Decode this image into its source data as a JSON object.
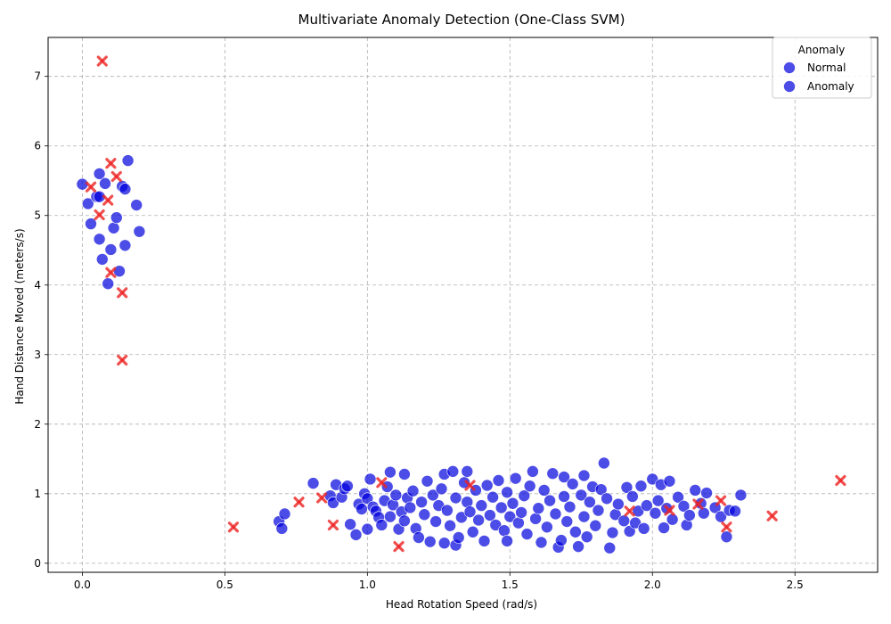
{
  "chart_data": {
    "type": "scatter",
    "title": "Multivariate Anomaly Detection (One-Class SVM)",
    "xlabel": "Head Rotation Speed (rad/s)",
    "ylabel": "Hand Distance Moved (meters/s)",
    "xlim": [
      -0.12,
      2.79
    ],
    "ylim": [
      -0.13,
      7.56
    ],
    "xticks": [
      0.0,
      0.5,
      1.0,
      1.5,
      2.0,
      2.5
    ],
    "xtick_labels": [
      "0.0",
      "0.5",
      "1.0",
      "1.5",
      "2.0",
      "2.5"
    ],
    "yticks": [
      0,
      1,
      2,
      3,
      4,
      5,
      6,
      7
    ],
    "ytick_labels": [
      "0",
      "1",
      "2",
      "3",
      "4",
      "5",
      "6",
      "7"
    ],
    "grid": true,
    "legend": {
      "title": "Anomaly",
      "position": "top-right",
      "entries": [
        "Normal",
        "Anomaly"
      ]
    },
    "series": [
      {
        "name": "Normal",
        "marker": "circle",
        "color": "#0000dd",
        "points": [
          [
            0.0,
            5.45
          ],
          [
            0.02,
            5.17
          ],
          [
            0.03,
            4.88
          ],
          [
            0.05,
            5.27
          ],
          [
            0.06,
            5.6
          ],
          [
            0.06,
            4.66
          ],
          [
            0.07,
            4.37
          ],
          [
            0.08,
            5.46
          ],
          [
            0.09,
            4.02
          ],
          [
            0.1,
            4.51
          ],
          [
            0.11,
            4.82
          ],
          [
            0.12,
            4.97
          ],
          [
            0.13,
            4.2
          ],
          [
            0.14,
            5.42
          ],
          [
            0.15,
            4.57
          ],
          [
            0.15,
            5.38
          ],
          [
            0.16,
            5.79
          ],
          [
            0.19,
            5.15
          ],
          [
            0.2,
            4.77
          ],
          [
            0.06,
            5.27
          ],
          [
            0.69,
            0.6
          ],
          [
            0.7,
            0.5
          ],
          [
            0.71,
            0.71
          ],
          [
            0.81,
            1.15
          ],
          [
            0.87,
            0.97
          ],
          [
            0.88,
            0.87
          ],
          [
            0.89,
            1.13
          ],
          [
            0.91,
            0.95
          ],
          [
            0.92,
            1.07
          ],
          [
            0.93,
            1.11
          ],
          [
            0.94,
            0.56
          ],
          [
            0.96,
            0.41
          ],
          [
            0.97,
            0.85
          ],
          [
            0.98,
            0.78
          ],
          [
            0.99,
            1.0
          ],
          [
            1.0,
            0.49
          ],
          [
            1.0,
            0.93
          ],
          [
            1.01,
            1.21
          ],
          [
            1.02,
            0.81
          ],
          [
            1.03,
            0.75
          ],
          [
            1.04,
            0.66
          ],
          [
            1.05,
            0.55
          ],
          [
            1.06,
            0.9
          ],
          [
            1.07,
            1.1
          ],
          [
            1.08,
            1.31
          ],
          [
            1.08,
            0.67
          ],
          [
            1.09,
            0.84
          ],
          [
            1.1,
            0.98
          ],
          [
            1.11,
            0.49
          ],
          [
            1.12,
            0.74
          ],
          [
            1.13,
            1.28
          ],
          [
            1.13,
            0.61
          ],
          [
            1.14,
            0.94
          ],
          [
            1.15,
            0.8
          ],
          [
            1.16,
            1.04
          ],
          [
            1.17,
            0.5
          ],
          [
            1.18,
            0.37
          ],
          [
            1.19,
            0.88
          ],
          [
            1.2,
            0.7
          ],
          [
            1.21,
            1.18
          ],
          [
            1.22,
            0.31
          ],
          [
            1.23,
            0.98
          ],
          [
            1.24,
            0.6
          ],
          [
            1.25,
            0.83
          ],
          [
            1.26,
            1.07
          ],
          [
            1.27,
            0.29
          ],
          [
            1.27,
            1.28
          ],
          [
            1.28,
            0.76
          ],
          [
            1.29,
            0.54
          ],
          [
            1.3,
            1.32
          ],
          [
            1.31,
            0.94
          ],
          [
            1.31,
            0.26
          ],
          [
            1.32,
            0.37
          ],
          [
            1.33,
            0.66
          ],
          [
            1.34,
            1.16
          ],
          [
            1.35,
            0.88
          ],
          [
            1.35,
            1.32
          ],
          [
            1.36,
            0.74
          ],
          [
            1.37,
            0.45
          ],
          [
            1.38,
            1.05
          ],
          [
            1.39,
            0.62
          ],
          [
            1.4,
            0.83
          ],
          [
            1.41,
            0.32
          ],
          [
            1.42,
            1.12
          ],
          [
            1.43,
            0.69
          ],
          [
            1.44,
            0.95
          ],
          [
            1.45,
            0.55
          ],
          [
            1.46,
            1.19
          ],
          [
            1.47,
            0.8
          ],
          [
            1.48,
            0.47
          ],
          [
            1.49,
            1.02
          ],
          [
            1.49,
            0.32
          ],
          [
            1.5,
            0.67
          ],
          [
            1.51,
            0.86
          ],
          [
            1.52,
            1.22
          ],
          [
            1.53,
            0.58
          ],
          [
            1.54,
            0.73
          ],
          [
            1.55,
            0.97
          ],
          [
            1.56,
            0.42
          ],
          [
            1.57,
            1.11
          ],
          [
            1.58,
            1.32
          ],
          [
            1.59,
            0.64
          ],
          [
            1.6,
            0.79
          ],
          [
            1.61,
            0.3
          ],
          [
            1.62,
            1.05
          ],
          [
            1.63,
            0.52
          ],
          [
            1.64,
            0.9
          ],
          [
            1.65,
            1.29
          ],
          [
            1.66,
            0.71
          ],
          [
            1.67,
            0.23
          ],
          [
            1.68,
            0.33
          ],
          [
            1.69,
            1.24
          ],
          [
            1.69,
            0.96
          ],
          [
            1.7,
            0.6
          ],
          [
            1.71,
            0.81
          ],
          [
            1.72,
            1.14
          ],
          [
            1.73,
            0.45
          ],
          [
            1.74,
            0.24
          ],
          [
            1.75,
            0.98
          ],
          [
            1.76,
            0.67
          ],
          [
            1.76,
            1.26
          ],
          [
            1.77,
            0.38
          ],
          [
            1.78,
            0.88
          ],
          [
            1.79,
            1.1
          ],
          [
            1.8,
            0.54
          ],
          [
            1.81,
            0.76
          ],
          [
            1.82,
            1.06
          ],
          [
            1.83,
            1.44
          ],
          [
            1.84,
            0.93
          ],
          [
            1.85,
            0.22
          ],
          [
            1.86,
            0.44
          ],
          [
            1.87,
            0.7
          ],
          [
            1.88,
            0.85
          ],
          [
            1.9,
            0.61
          ],
          [
            1.91,
            1.09
          ],
          [
            1.92,
            0.46
          ],
          [
            1.93,
            0.96
          ],
          [
            1.94,
            0.58
          ],
          [
            1.95,
            0.75
          ],
          [
            1.96,
            1.11
          ],
          [
            1.97,
            0.5
          ],
          [
            1.98,
            0.83
          ],
          [
            2.0,
            1.21
          ],
          [
            2.01,
            0.72
          ],
          [
            2.02,
            0.9
          ],
          [
            2.03,
            1.13
          ],
          [
            2.04,
            0.51
          ],
          [
            2.05,
            0.79
          ],
          [
            2.06,
            1.18
          ],
          [
            2.07,
            0.63
          ],
          [
            2.09,
            0.95
          ],
          [
            2.11,
            0.82
          ],
          [
            2.12,
            0.55
          ],
          [
            2.13,
            0.69
          ],
          [
            2.15,
            1.05
          ],
          [
            2.17,
            0.86
          ],
          [
            2.18,
            0.72
          ],
          [
            2.19,
            1.01
          ],
          [
            2.22,
            0.8
          ],
          [
            2.24,
            0.67
          ],
          [
            2.26,
            0.38
          ],
          [
            2.27,
            0.76
          ],
          [
            2.29,
            0.75
          ],
          [
            2.31,
            0.98
          ]
        ]
      },
      {
        "name": "Anomaly",
        "marker": "x",
        "color": "#ee2222",
        "points": [
          [
            0.07,
            7.22
          ],
          [
            0.1,
            5.75
          ],
          [
            0.12,
            5.56
          ],
          [
            0.03,
            5.41
          ],
          [
            0.09,
            5.22
          ],
          [
            0.06,
            5.01
          ],
          [
            0.1,
            4.18
          ],
          [
            0.14,
            3.89
          ],
          [
            0.14,
            2.92
          ],
          [
            0.53,
            0.52
          ],
          [
            0.76,
            0.88
          ],
          [
            0.84,
            0.94
          ],
          [
            0.88,
            0.55
          ],
          [
            1.05,
            1.16
          ],
          [
            1.11,
            0.24
          ],
          [
            1.36,
            1.12
          ],
          [
            1.92,
            0.75
          ],
          [
            2.06,
            0.76
          ],
          [
            2.16,
            0.85
          ],
          [
            2.24,
            0.9
          ],
          [
            2.26,
            0.52
          ],
          [
            2.42,
            0.68
          ],
          [
            2.66,
            1.19
          ]
        ]
      }
    ]
  }
}
